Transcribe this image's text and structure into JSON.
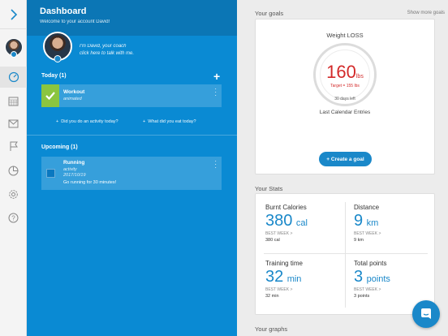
{
  "header": {
    "title": "Dashboard",
    "subtitle": "Welcome to your account David!"
  },
  "coach": {
    "line1": "I'm David, your coach",
    "line2": "click here to talk with me."
  },
  "today": {
    "title": "Today (1)",
    "card": {
      "title": "Workout",
      "subtitle": "animated"
    },
    "actions": [
      "Did you do an activity today?",
      "What did you eat today?"
    ]
  },
  "upcoming": {
    "title": "Upcoming (1)",
    "card": {
      "title": "Running",
      "type": "activity",
      "date": "2017/10/19",
      "note": "Go running for 30 minutes!"
    }
  },
  "goals": {
    "label": "Your goals",
    "show_more": "Show more goals",
    "title": "Weight LOSS",
    "value": "160",
    "unit": "lbs",
    "target": "Target = 155 lbs",
    "days_left": "30 days left",
    "footer": "Last Calendar Entries",
    "create_button": "+ Create a goal"
  },
  "stats": {
    "label": "Your Stats",
    "items": [
      {
        "name": "Burnt Calories",
        "value": "380",
        "unit": "cal",
        "best_label": "BEST WEEK >",
        "best_value": "380 cal"
      },
      {
        "name": "Distance",
        "value": "9",
        "unit": "km",
        "best_label": "BEST WEEK >",
        "best_value": "9 km"
      },
      {
        "name": "Training time",
        "value": "32",
        "unit": "min",
        "best_label": "BEST WEEK >",
        "best_value": "32 min"
      },
      {
        "name": "Total points",
        "value": "3",
        "unit": "points",
        "best_label": "BEST WEEK >",
        "best_value": "3 points"
      }
    ]
  },
  "graphs": {
    "label": "Your graphs"
  },
  "icons": [
    "chevron-right-icon",
    "dashboard-icon",
    "calendar-icon",
    "mail-icon",
    "flag-icon",
    "pie-chart-icon",
    "gear-icon",
    "help-icon",
    "chat-icon"
  ],
  "colors": {
    "primary": "#0a8ad3",
    "header": "#0b76b5",
    "accent": "#1a88c9",
    "goal_red": "#d32a2a",
    "done_green": "#8bc53f"
  }
}
